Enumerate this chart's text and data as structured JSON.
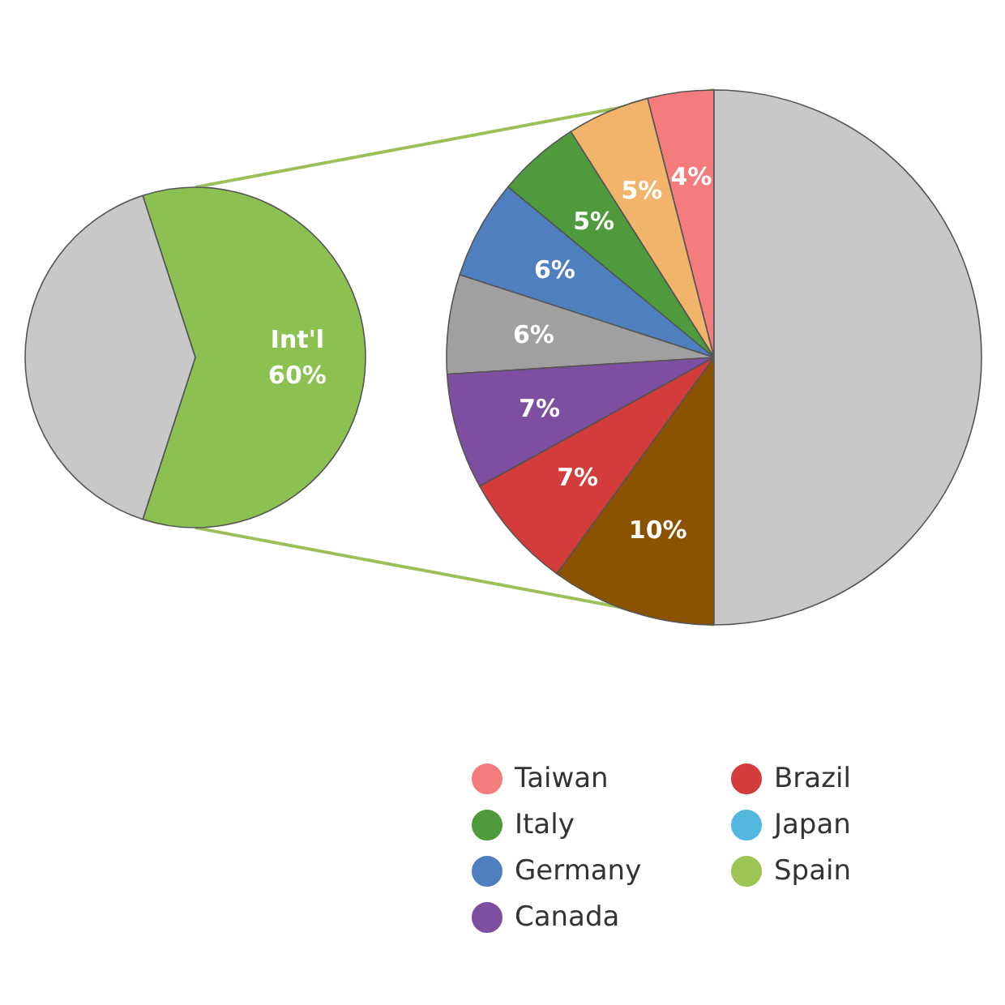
{
  "chart_data": [
    {
      "type": "pie",
      "categories": [
        "Int'l",
        null
      ],
      "values": [
        60,
        40
      ],
      "colors": [
        "#8cc152",
        "#c8c8c8"
      ],
      "value_labels": [
        "60%",
        null
      ]
    },
    {
      "type": "pie",
      "categories": [
        "Taiwan",
        null,
        "Italy",
        "Germany",
        null,
        "Canada",
        "Brazil",
        null,
        null,
        "Japan",
        "Spain"
      ],
      "values": [
        4,
        5,
        5,
        6,
        6,
        7,
        7,
        10,
        50,
        null,
        null
      ],
      "colors": [
        "#f47c7c",
        "#f2b36a",
        "#4f9a3c",
        "#4f7fbf",
        "#a0a0a0",
        "#7e4ea0",
        "#d43c3c",
        "#8b5200",
        "#c8c8c8",
        "#52b8e0",
        "#9cc455"
      ],
      "value_labels": [
        "4%",
        "5%",
        "5%",
        "6%",
        "6%",
        "7%",
        "7%",
        "10%",
        null,
        null,
        null
      ],
      "legend": "bottom"
    }
  ]
}
